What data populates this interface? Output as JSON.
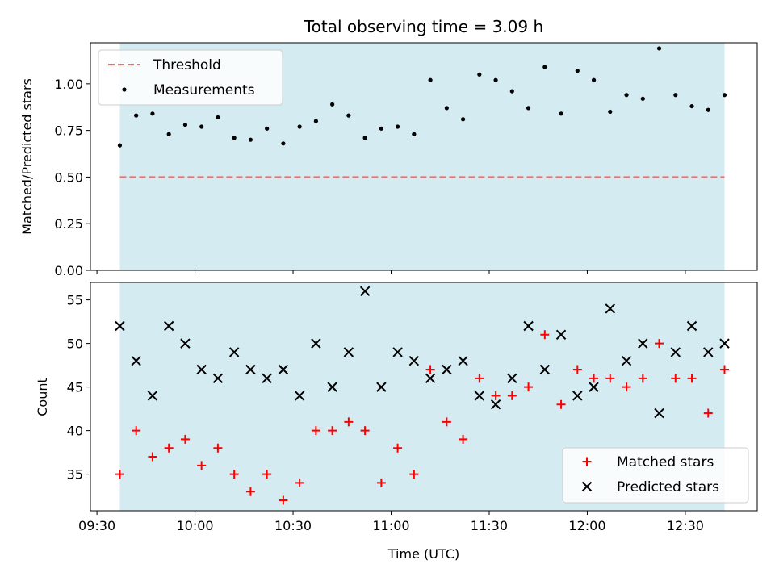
{
  "chart_data": [
    {
      "type": "scatter",
      "panel": "top",
      "title": "Total observing time = 3.09 h",
      "ylabel": "Matched/Predicted stars",
      "xlabel": "",
      "ylim": [
        0,
        1.22
      ],
      "yticks": [
        "0.00",
        "0.25",
        "0.50",
        "0.75",
        "1.00"
      ],
      "yticks_values": [
        0,
        0.25,
        0.5,
        0.75,
        1.0
      ],
      "x_range_minutes": [
        -2,
        202
      ],
      "grid": false,
      "legend_position": "top-left",
      "shaded_span_minutes": [
        7,
        192
      ],
      "colors": {
        "shade": "#d4ebf2",
        "threshold": "#ef6f6f",
        "points": "#000000"
      },
      "threshold": {
        "name": "Threshold",
        "value": 0.5
      },
      "series": [
        {
          "name": "Measurements",
          "x": [
            7,
            12,
            17,
            22,
            27,
            32,
            37,
            42,
            47,
            52,
            57,
            62,
            67,
            72,
            77,
            82,
            87,
            92,
            97,
            102,
            107,
            112,
            117,
            122,
            127,
            132,
            137,
            142,
            147,
            152,
            157,
            162,
            167,
            172,
            177,
            182,
            187,
            192
          ],
          "y": [
            0.67,
            0.83,
            0.84,
            0.73,
            0.78,
            0.77,
            0.82,
            0.71,
            0.7,
            0.76,
            0.68,
            0.77,
            0.8,
            0.89,
            0.83,
            0.71,
            0.76,
            0.77,
            0.73,
            1.02,
            0.87,
            0.81,
            1.05,
            1.02,
            0.96,
            0.87,
            1.09,
            0.84,
            1.07,
            1.02,
            0.85,
            0.94,
            0.92,
            1.19,
            0.94,
            0.88,
            0.86,
            0.94
          ]
        }
      ]
    },
    {
      "type": "scatter",
      "panel": "bottom",
      "title": "",
      "xlabel": "Time (UTC)",
      "ylabel": "Count",
      "ylim": [
        30.8,
        57
      ],
      "yticks": [
        "35",
        "40",
        "45",
        "50",
        "55"
      ],
      "yticks_values": [
        35,
        40,
        45,
        50,
        55
      ],
      "x_range_minutes": [
        -2,
        202
      ],
      "xticks": [
        "09:30",
        "10:00",
        "10:30",
        "11:00",
        "11:30",
        "12:00",
        "12:30"
      ],
      "xticks_minutes": [
        0,
        30,
        60,
        90,
        120,
        150,
        180
      ],
      "grid": false,
      "legend_position": "bottom-right",
      "shaded_span_minutes": [
        7,
        192
      ],
      "colors": {
        "shade": "#d4ebf2",
        "matched": "#ff0000",
        "predicted": "#000000"
      },
      "series": [
        {
          "name": "Matched stars",
          "marker": "plus",
          "x": [
            7,
            12,
            17,
            22,
            27,
            32,
            37,
            42,
            47,
            52,
            57,
            62,
            67,
            72,
            77,
            82,
            87,
            92,
            97,
            102,
            107,
            112,
            117,
            122,
            127,
            132,
            137,
            142,
            147,
            152,
            157,
            162,
            167,
            172,
            177,
            182,
            187,
            192
          ],
          "y": [
            35,
            40,
            37,
            38,
            39,
            36,
            38,
            35,
            33,
            35,
            32,
            34,
            40,
            40,
            41,
            40,
            34,
            38,
            35,
            47,
            41,
            39,
            46,
            44,
            44,
            45,
            51,
            43,
            47,
            46,
            46,
            45,
            46,
            50,
            46,
            46,
            42,
            47
          ]
        },
        {
          "name": "Predicted stars",
          "marker": "cross",
          "x": [
            7,
            12,
            17,
            22,
            27,
            32,
            37,
            42,
            47,
            52,
            57,
            62,
            67,
            72,
            77,
            82,
            87,
            92,
            97,
            102,
            107,
            112,
            117,
            122,
            127,
            132,
            137,
            142,
            147,
            152,
            157,
            162,
            167,
            172,
            177,
            182,
            187,
            192
          ],
          "y": [
            52,
            48,
            44,
            52,
            50,
            47,
            46,
            49,
            47,
            46,
            47,
            44,
            50,
            45,
            49,
            56,
            45,
            49,
            48,
            46,
            47,
            48,
            44,
            43,
            46,
            52,
            47,
            51,
            44,
            45,
            54,
            48,
            50,
            42,
            49,
            52,
            49,
            50
          ]
        }
      ]
    }
  ]
}
